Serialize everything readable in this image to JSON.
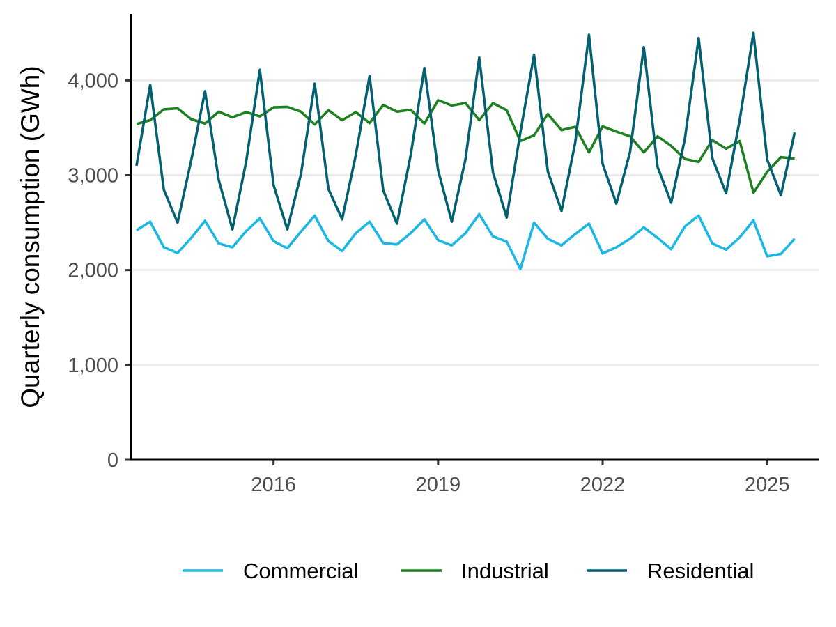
{
  "chart_data": {
    "type": "line",
    "title": "",
    "xlabel": "",
    "ylabel": "Quarterly consumption (GWh)",
    "x_start": "2013-Q3",
    "x_end": "2025-Q3",
    "xlim": [
      2013.4,
      2025.95
    ],
    "ylim": [
      0,
      4700
    ],
    "x_ticks": [
      2016,
      2019,
      2022,
      2025
    ],
    "x_tick_labels": [
      "2016",
      "2019",
      "2022",
      "2025"
    ],
    "y_ticks": [
      0,
      1000,
      2000,
      3000,
      4000
    ],
    "y_tick_labels": [
      "0",
      "1,000",
      "2,000",
      "3,000",
      "4,000"
    ],
    "grid": "horizontal major",
    "legend": "bottom",
    "series": [
      {
        "name": "Commercial",
        "color": "#1bb7e5",
        "values": [
          2420,
          2510,
          2240,
          2180,
          2340,
          2520,
          2280,
          2240,
          2410,
          2545,
          2305,
          2230,
          2405,
          2575,
          2305,
          2200,
          2390,
          2510,
          2285,
          2270,
          2390,
          2535,
          2315,
          2260,
          2390,
          2590,
          2355,
          2300,
          2010,
          2500,
          2330,
          2260,
          2380,
          2490,
          2175,
          2240,
          2330,
          2450,
          2340,
          2220,
          2460,
          2575,
          2280,
          2215,
          2345,
          2525,
          2145,
          2170,
          2330
        ]
      },
      {
        "name": "Industrial",
        "color": "#1e8121",
        "values": [
          3540,
          3580,
          3695,
          3705,
          3590,
          3545,
          3670,
          3610,
          3665,
          3620,
          3715,
          3720,
          3670,
          3535,
          3685,
          3580,
          3665,
          3550,
          3740,
          3670,
          3690,
          3545,
          3790,
          3735,
          3760,
          3580,
          3760,
          3685,
          3360,
          3420,
          3645,
          3475,
          3510,
          3240,
          3515,
          3460,
          3410,
          3240,
          3410,
          3310,
          3170,
          3140,
          3370,
          3280,
          3360,
          2815,
          3035,
          3190,
          3175
        ]
      },
      {
        "name": "Residential",
        "color": "#036070",
        "values": [
          3100,
          3950,
          2845,
          2500,
          3160,
          3885,
          2950,
          2430,
          3140,
          4110,
          2895,
          2430,
          3010,
          3965,
          2855,
          2535,
          3215,
          4045,
          2840,
          2490,
          3210,
          4130,
          3050,
          2510,
          3170,
          4240,
          3030,
          2555,
          3450,
          4270,
          3040,
          2625,
          3345,
          4480,
          3120,
          2700,
          3245,
          4350,
          3090,
          2710,
          3385,
          4445,
          3180,
          2810,
          3585,
          4500,
          3165,
          2790,
          3450
        ]
      }
    ]
  }
}
